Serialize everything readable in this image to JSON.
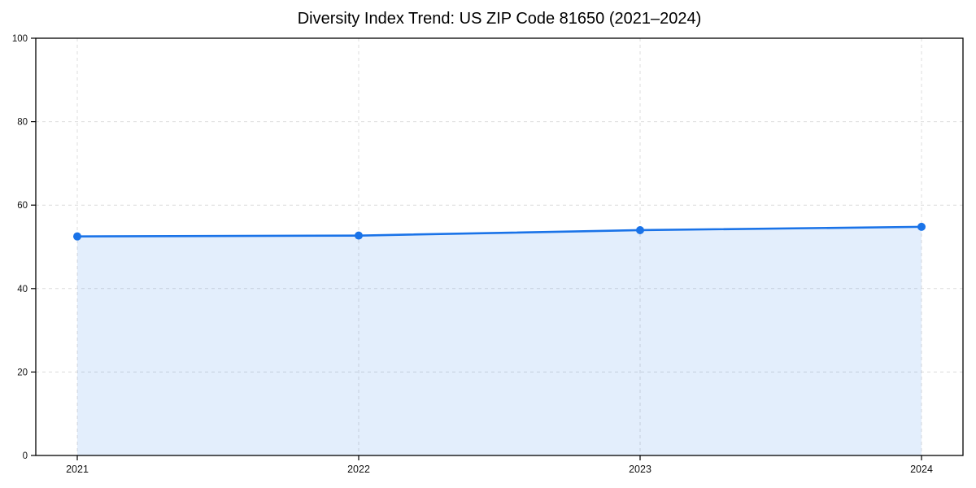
{
  "chart": {
    "background_color": "#ffffff"
  },
  "chart_data": {
    "type": "area",
    "title": "Diversity Index Trend: US ZIP Code 81650 (2021–2024)",
    "categories": [
      "2021",
      "2022",
      "2023",
      "2024"
    ],
    "series": [
      {
        "name": "Diversity Index",
        "values": [
          52.5,
          52.7,
          54.0,
          54.8
        ]
      }
    ],
    "xlabel": "",
    "ylabel": "",
    "ylim": [
      0,
      100
    ],
    "y_ticks": [
      0,
      20,
      40,
      60,
      80,
      100
    ],
    "grid": "on",
    "grid_style": "dashed",
    "legend": "none",
    "marker": "circle",
    "line_color": "#1a73e8",
    "marker_color": "#1a73e8",
    "fill_color": "rgba(26,115,232,0.12)",
    "grid_color": "#dcdcdc",
    "axis_color": "#000000",
    "tick_label_color": "#111111"
  }
}
